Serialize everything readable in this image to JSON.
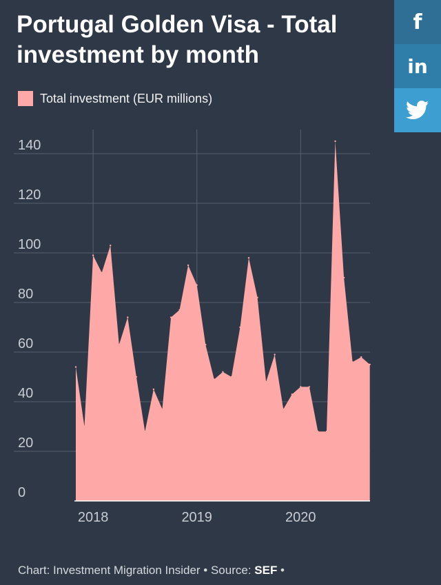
{
  "title": "Portugal Golden Visa - Total investment by month",
  "legend": {
    "label": "Total investment (EUR millions)"
  },
  "share": {
    "facebook": "f",
    "linkedin": "in",
    "twitter_icon": "twitter-bird-icon"
  },
  "footer": {
    "prefix": "Chart: Investment Migration Insider • Source: ",
    "source": "SEF",
    "suffix": " •"
  },
  "colors": {
    "background": "#2f3846",
    "area": "#ffa8a8",
    "grid": "#56606e",
    "tick_text": "#c9ccd2",
    "facebook": "#2f6f95",
    "linkedin": "#2f7ea9",
    "twitter": "#3d9fd1"
  },
  "chart_data": {
    "type": "area",
    "series": [
      {
        "name": "Total investment (EUR millions)",
        "x": [
          "2017-11",
          "2017-12",
          "2018-01",
          "2018-02",
          "2018-03",
          "2018-04",
          "2018-05",
          "2018-06",
          "2018-07",
          "2018-08",
          "2018-09",
          "2018-10",
          "2018-11",
          "2018-12",
          "2019-01",
          "2019-02",
          "2019-03",
          "2019-04",
          "2019-05",
          "2019-06",
          "2019-07",
          "2019-08",
          "2019-09",
          "2019-10",
          "2019-11",
          "2019-12",
          "2020-01",
          "2020-02",
          "2020-03",
          "2020-04",
          "2020-05",
          "2020-06",
          "2020-07",
          "2020-08",
          "2020-09"
        ],
        "values": [
          54,
          30,
          99,
          92,
          103,
          63,
          74,
          50,
          28,
          45,
          37,
          74,
          77,
          95,
          87,
          63,
          49,
          52,
          50,
          70,
          98,
          82,
          48,
          59,
          37,
          43,
          46,
          46,
          28,
          28,
          145,
          90,
          56,
          58,
          55
        ]
      }
    ],
    "x_ticks": [
      "2018",
      "2019",
      "2020"
    ],
    "y_ticks": [
      0,
      20,
      40,
      60,
      80,
      100,
      120,
      140
    ],
    "ylim": [
      0,
      145
    ],
    "grid": true,
    "legend_position": "top-left"
  }
}
